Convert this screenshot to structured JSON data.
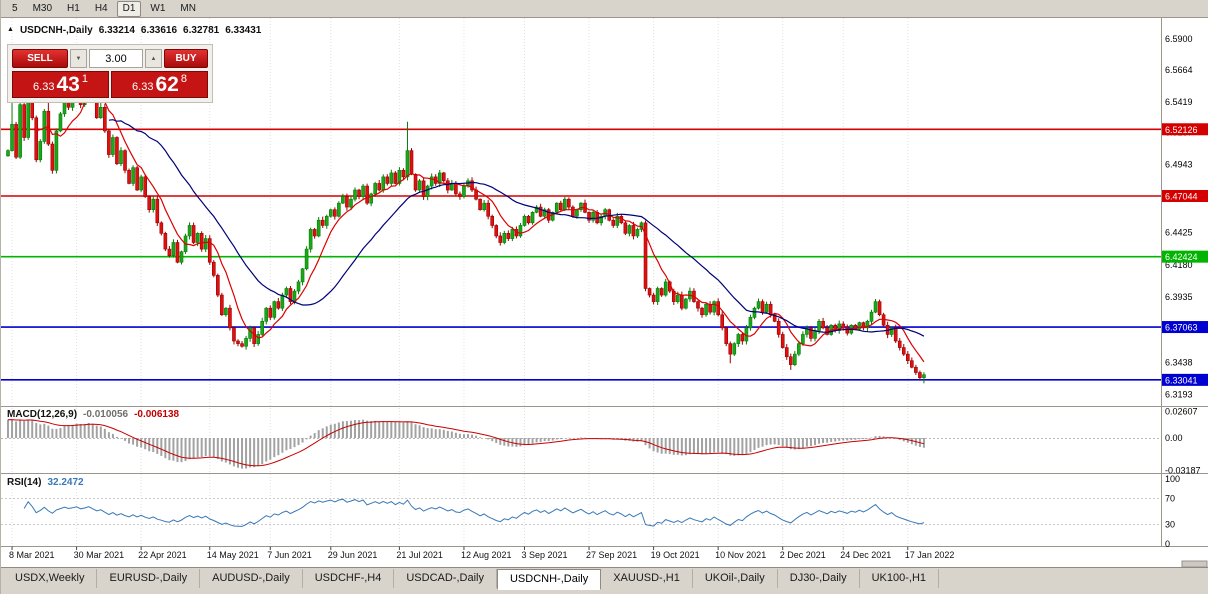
{
  "toolbar": {
    "timeframes": [
      "5",
      "M30",
      "H1",
      "H4",
      "D1",
      "W1",
      "MN"
    ],
    "active": "D1"
  },
  "main_chart": {
    "header": {
      "marker": "▲",
      "symbol": "USDCNH-,Daily",
      "open": "6.33214",
      "high": "6.33616",
      "low": "6.32781",
      "close": "6.33431"
    },
    "macd_label": {
      "name": "MACD(12,26,9)",
      "value_main": "-0.010056",
      "value_signal": "-0.006138"
    },
    "rsi_label": {
      "name": "RSI(14)",
      "value": "32.2472"
    }
  },
  "trade_panel": {
    "sell_label": "SELL",
    "buy_label": "BUY",
    "volume": "3.00",
    "decrease_icon": "▼",
    "increase_icon": "▲",
    "bid": {
      "prefix": "6.33",
      "big": "43",
      "sup": "1"
    },
    "ask": {
      "prefix": "6.33",
      "big": "62",
      "sup": "8"
    }
  },
  "tabs": {
    "items": [
      "USDX,Weekly",
      "EURUSD-,Daily",
      "AUDUSD-,Daily",
      "USDCHF-,H4",
      "USDCAD-,Daily",
      "USDCNH-,Daily",
      "XAUUSD-,H1",
      "UKOil-,Daily",
      "DJ30-,Daily",
      "UK100-,H1"
    ],
    "active_index": 5
  },
  "chart_data": {
    "type": "candlestick",
    "symbol": "USDCNH-",
    "period": "Daily",
    "y_range": [
      6.3105,
      6.606
    ],
    "price_scale_labels": [
      "6.5900",
      "6.5664",
      "6.5419",
      "6.5187",
      "6.4943",
      "6.4425",
      "6.4180",
      "6.3935",
      "6.3438",
      "6.3193"
    ],
    "levels": [
      {
        "price": 6.52126,
        "text": "6.52126",
        "color": "#d40000"
      },
      {
        "price": 6.47044,
        "text": "6.47044",
        "color": "#d40000"
      },
      {
        "price": 6.42424,
        "text": "6.42424",
        "color": "#00b400"
      },
      {
        "price": 6.37063,
        "text": "6.37063",
        "color": "#0000d0"
      },
      {
        "price": 6.33041,
        "text": "6.33041",
        "color": "#0000d0"
      }
    ],
    "x_labels": [
      {
        "bar": 1,
        "text": "8 Mar 2021"
      },
      {
        "bar": 17,
        "text": "30 Mar 2021"
      },
      {
        "bar": 33,
        "text": "22 Apr 2021"
      },
      {
        "bar": 50,
        "text": "14 May 2021"
      },
      {
        "bar": 65,
        "text": "7 Jun 2021"
      },
      {
        "bar": 80,
        "text": "29 Jun 2021"
      },
      {
        "bar": 97,
        "text": "21 Jul 2021"
      },
      {
        "bar": 113,
        "text": "12 Aug 2021"
      },
      {
        "bar": 128,
        "text": "3 Sep 2021"
      },
      {
        "bar": 144,
        "text": "27 Sep 2021"
      },
      {
        "bar": 160,
        "text": "19 Oct 2021"
      },
      {
        "bar": 176,
        "text": "10 Nov 2021"
      },
      {
        "bar": 192,
        "text": "2 Dec 2021"
      },
      {
        "bar": 207,
        "text": "24 Dec 2021"
      },
      {
        "bar": 223,
        "text": "17 Jan 2022"
      }
    ],
    "closes": [
      6.505,
      6.525,
      6.5,
      6.54,
      6.515,
      6.548,
      6.53,
      6.498,
      6.512,
      6.535,
      6.51,
      6.49,
      6.52,
      6.533,
      6.55,
      6.538,
      6.545,
      6.556,
      6.54,
      6.548,
      6.56,
      6.545,
      6.53,
      6.538,
      6.52,
      6.502,
      6.515,
      6.495,
      6.505,
      6.49,
      6.48,
      6.492,
      6.475,
      6.485,
      6.47,
      6.46,
      6.468,
      6.45,
      6.442,
      6.43,
      6.425,
      6.435,
      6.42,
      6.428,
      6.44,
      6.448,
      6.435,
      6.442,
      6.43,
      6.438,
      6.42,
      6.41,
      6.395,
      6.38,
      6.385,
      6.37,
      6.36,
      6.358,
      6.356,
      6.362,
      6.37,
      6.358,
      6.365,
      6.375,
      6.385,
      6.378,
      6.39,
      6.385,
      6.395,
      6.4,
      6.39,
      6.398,
      6.405,
      6.415,
      6.43,
      6.445,
      6.44,
      6.452,
      6.448,
      6.455,
      6.46,
      6.455,
      6.465,
      6.47,
      6.462,
      6.468,
      6.475,
      6.47,
      6.478,
      6.465,
      6.472,
      6.48,
      6.475,
      6.485,
      6.48,
      6.488,
      6.48,
      6.49,
      6.485,
      6.505,
      6.487,
      6.475,
      6.482,
      6.47,
      6.478,
      6.485,
      6.48,
      6.488,
      6.482,
      6.475,
      6.48,
      6.472,
      6.47,
      6.478,
      6.482,
      6.475,
      6.468,
      6.46,
      6.465,
      6.455,
      6.448,
      6.44,
      6.435,
      6.442,
      6.438,
      6.445,
      6.44,
      6.448,
      6.455,
      6.45,
      6.458,
      6.462,
      6.455,
      6.46,
      6.452,
      6.458,
      6.465,
      6.46,
      6.468,
      6.462,
      6.455,
      6.46,
      6.465,
      6.458,
      6.452,
      6.458,
      6.45,
      6.455,
      6.46,
      6.452,
      6.448,
      6.455,
      6.45,
      6.442,
      6.448,
      6.44,
      6.445,
      6.45,
      6.4,
      6.395,
      6.39,
      6.4,
      6.395,
      6.405,
      6.398,
      6.39,
      6.395,
      6.385,
      6.392,
      6.398,
      6.39,
      6.385,
      6.38,
      6.388,
      6.382,
      6.39,
      6.38,
      6.37,
      6.358,
      6.35,
      6.358,
      6.365,
      6.36,
      6.37,
      6.378,
      6.385,
      6.39,
      6.382,
      6.388,
      6.38,
      6.375,
      6.365,
      6.355,
      6.348,
      6.342,
      6.35,
      6.358,
      6.365,
      6.37,
      6.362,
      6.368,
      6.375,
      6.37,
      6.365,
      6.372,
      6.368,
      6.373,
      6.37,
      6.366,
      6.372,
      6.369,
      6.374,
      6.37,
      6.375,
      6.382,
      6.39,
      6.38,
      6.372,
      6.365,
      6.37,
      6.36,
      6.355,
      6.35,
      6.345,
      6.34,
      6.336,
      6.3321,
      6.3343
    ],
    "wick_overrides": [
      {
        "i": 1,
        "h": 6.566
      },
      {
        "i": 10,
        "h": 6.577
      },
      {
        "i": 23,
        "h": 6.563
      },
      {
        "i": 99,
        "h": 6.527
      },
      {
        "i": 179,
        "l": 6.343
      },
      {
        "i": 194,
        "l": 6.338
      },
      {
        "i": 215,
        "h": 6.392
      },
      {
        "i": 227,
        "h": 6.3362,
        "l": 6.32781
      }
    ],
    "moving_averages": [
      {
        "period": 8,
        "color": "#dd0000"
      },
      {
        "period": 26,
        "color": "#000078"
      }
    ],
    "macd": {
      "params": [
        12,
        26,
        9
      ],
      "current": -0.010056,
      "signal_current": -0.006138,
      "scale_labels": [
        {
          "v": 0.02607,
          "text": "0.02607"
        },
        {
          "v": 0,
          "text": "0.00"
        },
        {
          "v": -0.03187,
          "text": "-0.03187"
        }
      ]
    },
    "rsi": {
      "period": 14,
      "current": 32.2472,
      "levels": [
        70,
        30
      ],
      "scale_labels": [
        {
          "v": 100,
          "text": "100"
        },
        {
          "v": 70,
          "text": "70"
        },
        {
          "v": 30,
          "text": "30"
        },
        {
          "v": 0,
          "text": "0"
        }
      ]
    },
    "colors": {
      "up": "#18a818",
      "up_stroke": "#0a7a0a",
      "down": "#e01010",
      "down_stroke": "#990000",
      "macd_hist": "#a2a2a2",
      "macd_signal": "#c80000",
      "rsi_line": "#3878b8",
      "grid": "#e2e2e2",
      "axis": "#9a968e"
    }
  }
}
